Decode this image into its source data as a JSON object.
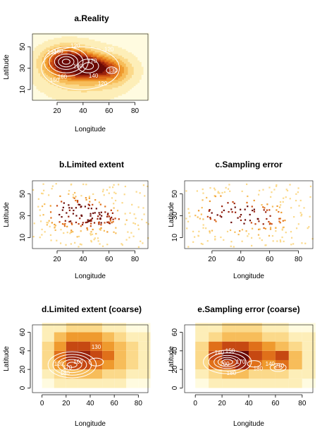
{
  "palette": {
    "heat": [
      "#fffbe0",
      "#fdeeb8",
      "#fbd98a",
      "#f7bd5a",
      "#ef9a2e",
      "#e0701a",
      "#c64812",
      "#9a220c",
      "#6a0a06"
    ],
    "contour": "#ffffff",
    "axis": "#000000"
  },
  "chart_data": [
    {
      "panel": "a",
      "type": "heatmap",
      "title": "a.Reality",
      "xlabel": "Longitude",
      "ylabel": "Latitude",
      "xticks": [
        20,
        40,
        60,
        80
      ],
      "yticks": [
        10,
        30,
        50
      ],
      "xlim": [
        1,
        90
      ],
      "ylim": [
        0,
        62
      ],
      "hotspots": [
        {
          "x": 27,
          "y": 36,
          "sx": 11,
          "sy": 9,
          "w": 1.0
        },
        {
          "x": 44,
          "y": 32,
          "sx": 10,
          "sy": 7,
          "w": 0.75
        },
        {
          "x": 62,
          "y": 28,
          "sx": 10,
          "sy": 8,
          "w": 0.5
        },
        {
          "x": 40,
          "y": 26,
          "sx": 22,
          "sy": 16,
          "w": 0.35
        }
      ],
      "contour_labels": [
        {
          "x": 16,
          "y": 43,
          "t": "140"
        },
        {
          "x": 21,
          "y": 44,
          "t": "180"
        },
        {
          "x": 34,
          "y": 49,
          "t": "120"
        },
        {
          "x": 36,
          "y": 30,
          "t": "190"
        },
        {
          "x": 47,
          "y": 35,
          "t": "170"
        },
        {
          "x": 60,
          "y": 46,
          "t": "120"
        },
        {
          "x": 48,
          "y": 21,
          "t": "140"
        },
        {
          "x": 18,
          "y": 17,
          "t": "150"
        },
        {
          "x": 24,
          "y": 20,
          "t": "160"
        },
        {
          "x": 55,
          "y": 14,
          "t": "120"
        },
        {
          "x": 63,
          "y": 26,
          "t": "130"
        }
      ]
    },
    {
      "panel": "b",
      "type": "scatter",
      "title": "b.Limited extent",
      "xlabel": "Longitude",
      "ylabel": "Latitude",
      "xticks": [
        20,
        40,
        60,
        80
      ],
      "yticks": [
        10,
        30,
        50
      ],
      "xlim": [
        1,
        90
      ],
      "ylim": [
        0,
        62
      ],
      "samples": 260,
      "seed": 11
    },
    {
      "panel": "c",
      "type": "scatter",
      "title": "c.Sampling error",
      "xlabel": "Longitude",
      "ylabel": "Latitude",
      "xticks": [
        20,
        40,
        60,
        80
      ],
      "yticks": [
        10,
        30,
        50
      ],
      "xlim": [
        1,
        90
      ],
      "ylim": [
        0,
        62
      ],
      "samples": 220,
      "seed": 29
    },
    {
      "panel": "d",
      "type": "heatmap",
      "title": "d.Limited extent (coarse)",
      "xlabel": "Longitude",
      "ylabel": "Latitude",
      "xticks": [
        0,
        20,
        40,
        60,
        80
      ],
      "yticks": [
        0,
        20,
        40,
        60
      ],
      "xlim": [
        -8,
        88
      ],
      "ylim": [
        -5,
        68
      ],
      "grid_x0": 0,
      "grid_y0": 0,
      "cell": 10,
      "grid": [
        [
          0,
          1,
          1,
          1,
          1,
          1,
          1,
          0,
          0
        ],
        [
          1,
          2,
          3,
          3,
          3,
          2,
          2,
          1,
          1
        ],
        [
          2,
          4,
          6,
          6,
          5,
          4,
          3,
          2,
          1
        ],
        [
          2,
          5,
          7,
          7,
          6,
          5,
          3,
          2,
          1
        ],
        [
          2,
          4,
          6,
          6,
          5,
          4,
          3,
          2,
          1
        ],
        [
          1,
          3,
          4,
          4,
          4,
          3,
          2,
          1,
          1
        ],
        [
          1,
          1,
          2,
          2,
          2,
          1,
          1,
          0,
          0
        ]
      ],
      "contour_labels": [
        {
          "x": 45,
          "y": 42,
          "t": "130"
        },
        {
          "x": 30,
          "y": 26,
          "t": "160"
        },
        {
          "x": 21,
          "y": 20,
          "t": "170"
        },
        {
          "x": 14,
          "y": 24,
          "t": "120"
        },
        {
          "x": 19,
          "y": 14,
          "t": "180"
        }
      ]
    },
    {
      "panel": "e",
      "type": "heatmap",
      "title": "e.Sampling error (coarse)",
      "xlabel": "Longitude",
      "ylabel": "Latitude",
      "xticks": [
        0,
        20,
        40,
        60,
        80
      ],
      "yticks": [
        0,
        20,
        40,
        60
      ],
      "xlim": [
        -8,
        88
      ],
      "ylim": [
        -5,
        68
      ],
      "grid_x0": 0,
      "grid_y0": 0,
      "cell": 10,
      "grid": [
        [
          0,
          1,
          1,
          1,
          1,
          1,
          1,
          1,
          0
        ],
        [
          1,
          2,
          3,
          3,
          2,
          2,
          2,
          1,
          1
        ],
        [
          2,
          5,
          6,
          7,
          5,
          4,
          5,
          3,
          1
        ],
        [
          2,
          6,
          8,
          8,
          6,
          5,
          6,
          3,
          1
        ],
        [
          2,
          5,
          6,
          6,
          5,
          4,
          3,
          2,
          1
        ],
        [
          1,
          2,
          3,
          3,
          3,
          2,
          2,
          1,
          1
        ],
        [
          1,
          1,
          2,
          2,
          2,
          1,
          1,
          0,
          0
        ]
      ],
      "contour_labels": [
        {
          "x": 18,
          "y": 36,
          "t": "140"
        },
        {
          "x": 26,
          "y": 38,
          "t": "150"
        },
        {
          "x": 22,
          "y": 24,
          "t": "200"
        },
        {
          "x": 34,
          "y": 26,
          "t": "170"
        },
        {
          "x": 56,
          "y": 24,
          "t": "140"
        },
        {
          "x": 63,
          "y": 22,
          "t": "210"
        },
        {
          "x": 27,
          "y": 14,
          "t": "180"
        },
        {
          "x": 47,
          "y": 19,
          "t": "180"
        }
      ]
    }
  ]
}
